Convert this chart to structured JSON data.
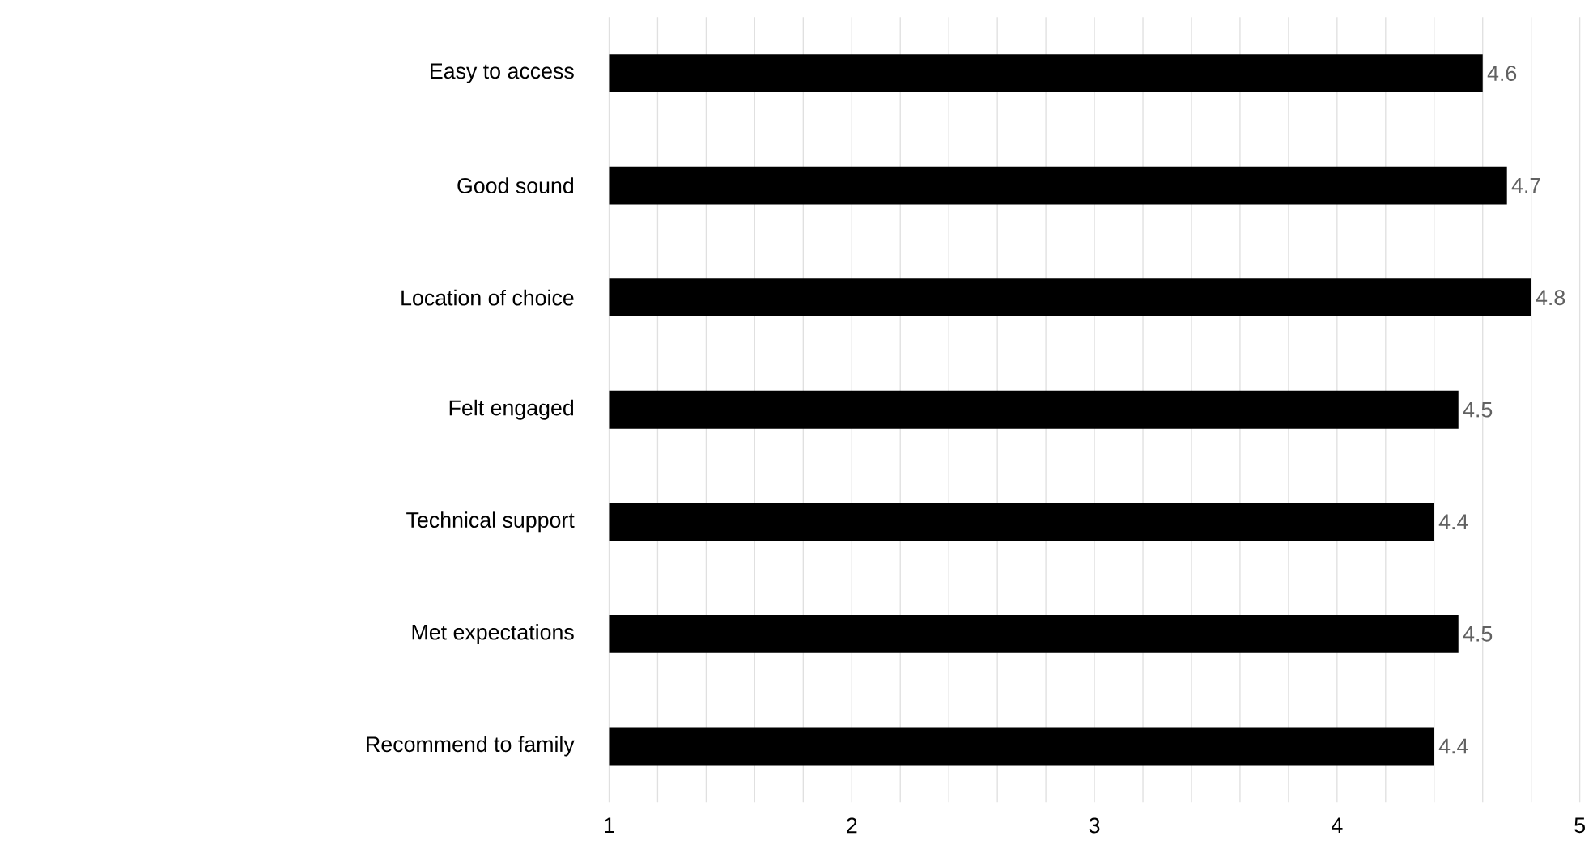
{
  "chart_data": {
    "type": "bar",
    "orientation": "horizontal",
    "categories": [
      "Easy to access",
      "Good sound",
      "Location of choice",
      "Felt engaged",
      "Technical support",
      "Met expectations",
      "Recommend to family"
    ],
    "values": [
      4.6,
      4.7,
      4.8,
      4.5,
      4.4,
      4.5,
      4.4
    ],
    "value_labels": [
      "4.6",
      "4.7",
      "4.8",
      "4.5",
      "4.4",
      "4.5",
      "4.4"
    ],
    "color": "#000000",
    "xlim": [
      1,
      5
    ],
    "xticks": [
      1,
      {
        "value": 1.2,
        "label": null
      },
      {
        "value": 1.4,
        "label": null
      },
      {
        "value": 1.6,
        "label": null
      },
      {
        "value": 1.8,
        "label": null
      },
      2,
      {
        "value": 2.2,
        "label": null
      },
      {
        "value": 2.4,
        "label": null
      },
      {
        "value": 2.6,
        "label": null
      },
      {
        "value": 2.8,
        "label": null
      },
      3,
      {
        "value": 3.2,
        "label": null
      },
      {
        "value": 3.4,
        "label": null
      },
      {
        "value": 3.6,
        "label": null
      },
      {
        "value": 3.8,
        "label": null
      },
      4,
      {
        "value": 4.2,
        "label": null
      },
      {
        "value": 4.4,
        "label": null
      },
      {
        "value": 4.6,
        "label": null
      },
      {
        "value": 4.8,
        "label": null
      },
      5
    ],
    "grid": "x"
  }
}
